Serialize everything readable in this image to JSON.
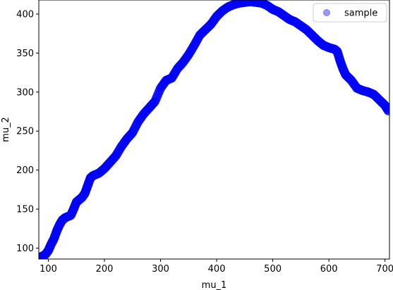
{
  "chart_data": {
    "type": "scatter",
    "xlabel": "mu_1",
    "ylabel": "mu_2",
    "xlim": [
      83,
      708
    ],
    "ylim": [
      86,
      418
    ],
    "xticks": [
      100,
      200,
      300,
      400,
      500,
      600,
      700
    ],
    "yticks": [
      100,
      150,
      200,
      250,
      300,
      350,
      400
    ],
    "legend": {
      "placement": "top-right",
      "entries": [
        "sample"
      ]
    },
    "grid": false,
    "series": [
      {
        "name": "sample",
        "color": "#0000ff",
        "marker_alpha": 0.4,
        "points": [
          [
            85,
            88
          ],
          [
            95,
            92
          ],
          [
            100,
            97
          ],
          [
            105,
            105
          ],
          [
            110,
            112
          ],
          [
            115,
            122
          ],
          [
            120,
            130
          ],
          [
            125,
            136
          ],
          [
            130,
            139
          ],
          [
            140,
            142
          ],
          [
            145,
            150
          ],
          [
            150,
            159
          ],
          [
            155,
            162
          ],
          [
            160,
            165
          ],
          [
            165,
            170
          ],
          [
            170,
            180
          ],
          [
            175,
            190
          ],
          [
            180,
            193
          ],
          [
            190,
            196
          ],
          [
            200,
            202
          ],
          [
            210,
            210
          ],
          [
            220,
            218
          ],
          [
            230,
            230
          ],
          [
            240,
            240
          ],
          [
            250,
            248
          ],
          [
            260,
            262
          ],
          [
            270,
            272
          ],
          [
            280,
            280
          ],
          [
            290,
            288
          ],
          [
            300,
            305
          ],
          [
            310,
            315
          ],
          [
            320,
            318
          ],
          [
            330,
            330
          ],
          [
            340,
            338
          ],
          [
            350,
            348
          ],
          [
            360,
            360
          ],
          [
            370,
            373
          ],
          [
            380,
            380
          ],
          [
            390,
            387
          ],
          [
            400,
            397
          ],
          [
            410,
            404
          ],
          [
            420,
            409
          ],
          [
            430,
            412
          ],
          [
            440,
            414
          ],
          [
            450,
            415
          ],
          [
            460,
            416
          ],
          [
            470,
            415
          ],
          [
            480,
            414
          ],
          [
            490,
            411
          ],
          [
            500,
            406
          ],
          [
            510,
            403
          ],
          [
            520,
            398
          ],
          [
            530,
            393
          ],
          [
            540,
            390
          ],
          [
            550,
            385
          ],
          [
            560,
            380
          ],
          [
            570,
            373
          ],
          [
            580,
            366
          ],
          [
            590,
            360
          ],
          [
            600,
            357
          ],
          [
            610,
            355
          ],
          [
            615,
            352
          ],
          [
            620,
            340
          ],
          [
            625,
            330
          ],
          [
            630,
            322
          ],
          [
            640,
            315
          ],
          [
            650,
            305
          ],
          [
            660,
            302
          ],
          [
            670,
            300
          ],
          [
            680,
            297
          ],
          [
            690,
            290
          ],
          [
            700,
            283
          ],
          [
            706,
            276
          ]
        ]
      }
    ]
  }
}
